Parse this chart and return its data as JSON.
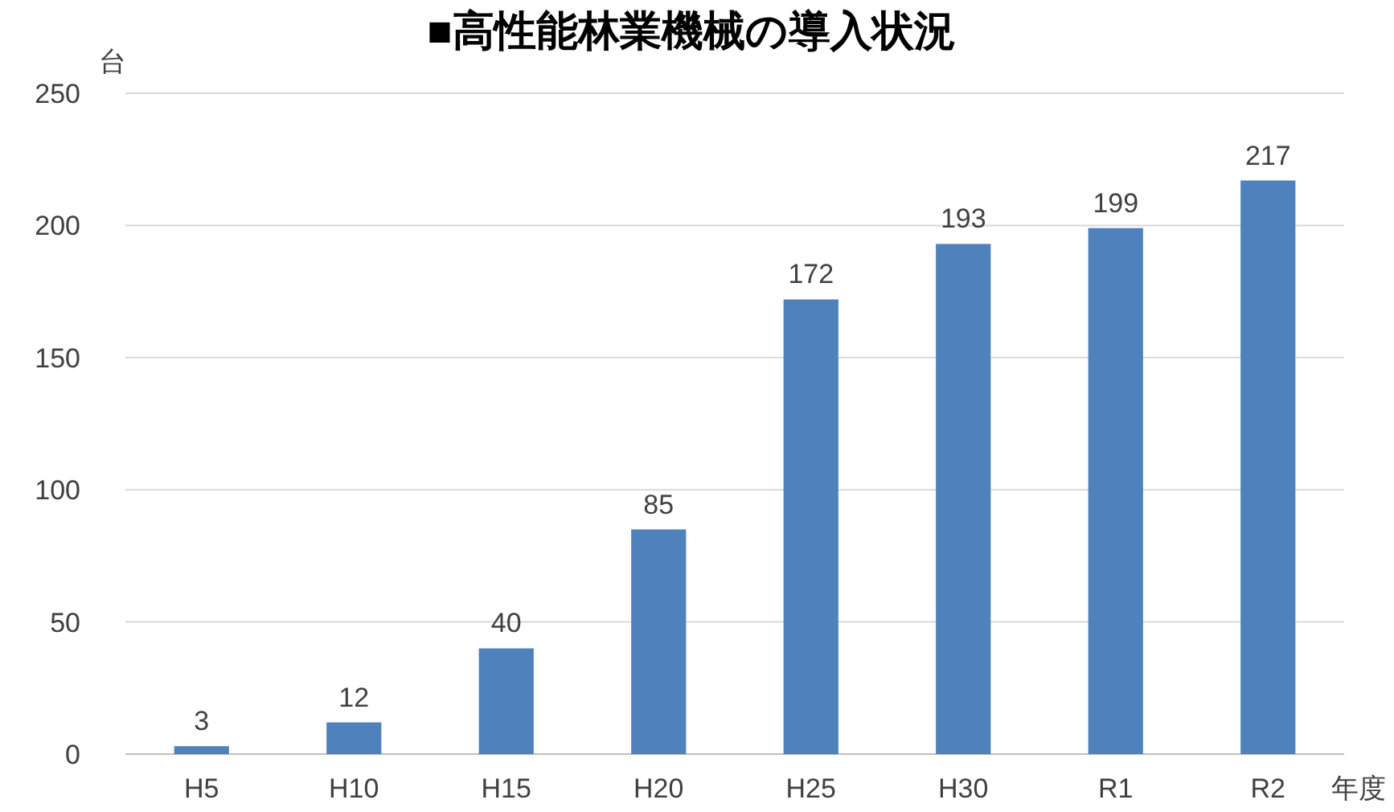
{
  "chart_data": {
    "type": "bar",
    "title": "■高性能林業機械の導入状況",
    "ylabel": "台",
    "xlabel": "年度",
    "categories": [
      "H5",
      "H10",
      "H15",
      "H20",
      "H25",
      "H30",
      "R1",
      "R2"
    ],
    "values": [
      3,
      12,
      40,
      85,
      172,
      193,
      199,
      217
    ],
    "color": "#4f81bd",
    "ylim": [
      0,
      250
    ],
    "yticks": [
      0,
      50,
      100,
      150,
      200,
      250
    ],
    "grid": "y",
    "data_labels": true
  }
}
